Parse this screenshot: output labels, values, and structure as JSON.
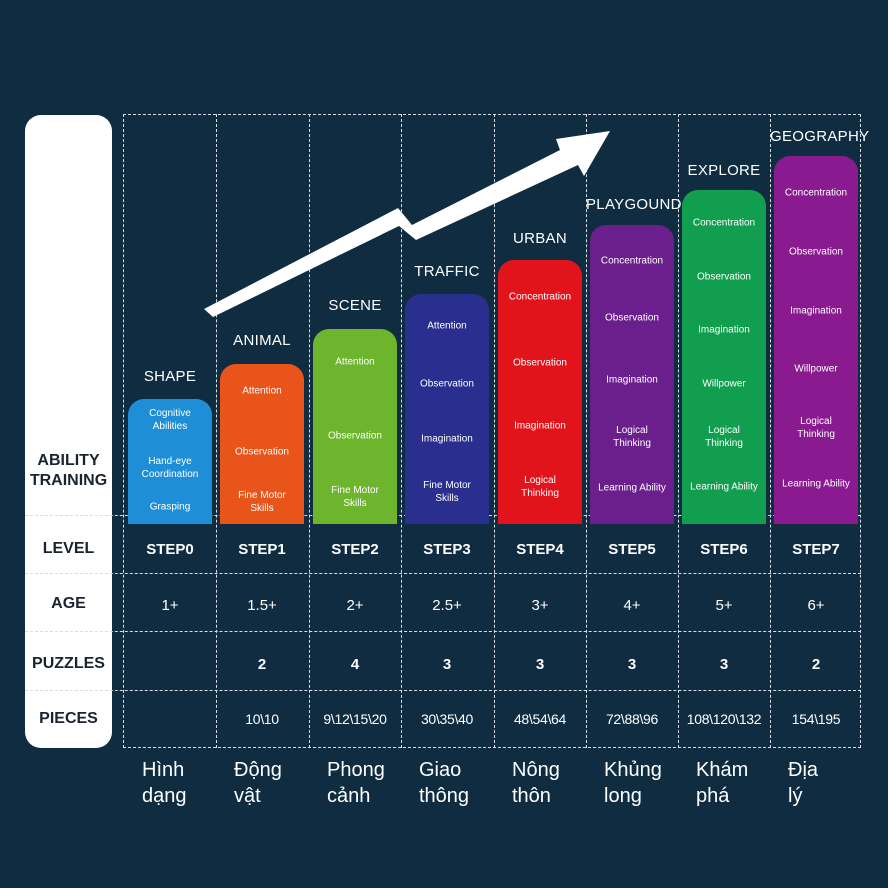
{
  "row_labels": {
    "ability": [
      "ABILITY",
      "TRAINING"
    ],
    "level": "LEVEL",
    "age": "AGE",
    "puzzles": "PUZZLES",
    "pieces": "PIECES"
  },
  "columns": [
    {
      "title": "SHAPE",
      "color": "#1e8fd6",
      "skills": [
        "Cognitive Abilities",
        "Hand-eye Coordination",
        "Grasping"
      ],
      "level": "STEP0",
      "age": "1+",
      "puzzles": "",
      "pieces": "",
      "vi": [
        "Hình",
        "dạng"
      ]
    },
    {
      "title": "ANIMAL",
      "color": "#e8541a",
      "skills": [
        "Attention",
        "Observation",
        "Fine Motor Skills"
      ],
      "level": "STEP1",
      "age": "1.5+",
      "puzzles": "2",
      "pieces": "10\\10",
      "vi": [
        "Động",
        "vật"
      ]
    },
    {
      "title": "SCENE",
      "color": "#6cb52d",
      "skills": [
        "Attention",
        "Observation",
        "Fine Motor Skills"
      ],
      "level": "STEP2",
      "age": "2+",
      "puzzles": "4",
      "pieces": "9\\12\\15\\20",
      "vi": [
        "Phong",
        "cảnh"
      ]
    },
    {
      "title": "TRAFFIC",
      "color": "#2a2f8f",
      "skills": [
        "Attention",
        "Observation",
        "Imagination",
        "Fine Motor Skills"
      ],
      "level": "STEP3",
      "age": "2.5+",
      "puzzles": "3",
      "pieces": "30\\35\\40",
      "vi": [
        "Giao",
        "thông"
      ]
    },
    {
      "title": "URBAN",
      "color": "#e3131c",
      "skills": [
        "Concentration",
        "Observation",
        "Imagination",
        "Logical Thinking"
      ],
      "level": "STEP4",
      "age": "3+",
      "puzzles": "3",
      "pieces": "48\\54\\64",
      "vi": [
        "Nông",
        "thôn"
      ]
    },
    {
      "title": "PLAYGOUND",
      "color": "#6a1f8c",
      "skills": [
        "Concentration",
        "Observation",
        "Imagination",
        "Logical Thinking",
        "Learning Ability"
      ],
      "level": "STEP5",
      "age": "4+",
      "puzzles": "3",
      "pieces": "72\\88\\96",
      "vi": [
        "Khủng",
        "long"
      ]
    },
    {
      "title": "EXPLORE",
      "color": "#119e4f",
      "skills": [
        "Concentration",
        "Observation",
        "Imagination",
        "Willpower",
        "Logical Thinking",
        "Learning Ability"
      ],
      "level": "STEP6",
      "age": "5+",
      "puzzles": "3",
      "pieces": "108\\120\\132",
      "vi": [
        "Khám",
        "phá"
      ]
    },
    {
      "title": "GEOGRAPHY",
      "color": "#8a1a8f",
      "skills": [
        "Concentration",
        "Observation",
        "Imagination",
        "Willpower",
        "Logical Thinking",
        "Learning Ability"
      ],
      "level": "STEP7",
      "age": "6+",
      "puzzles": "2",
      "pieces": "154\\195",
      "vi": [
        "Địa",
        "lý"
      ]
    }
  ],
  "colors": {
    "background": "#0f2c40",
    "panel": "#ffffff",
    "arrow": "#ffffff",
    "grid": "#d8dee6"
  }
}
